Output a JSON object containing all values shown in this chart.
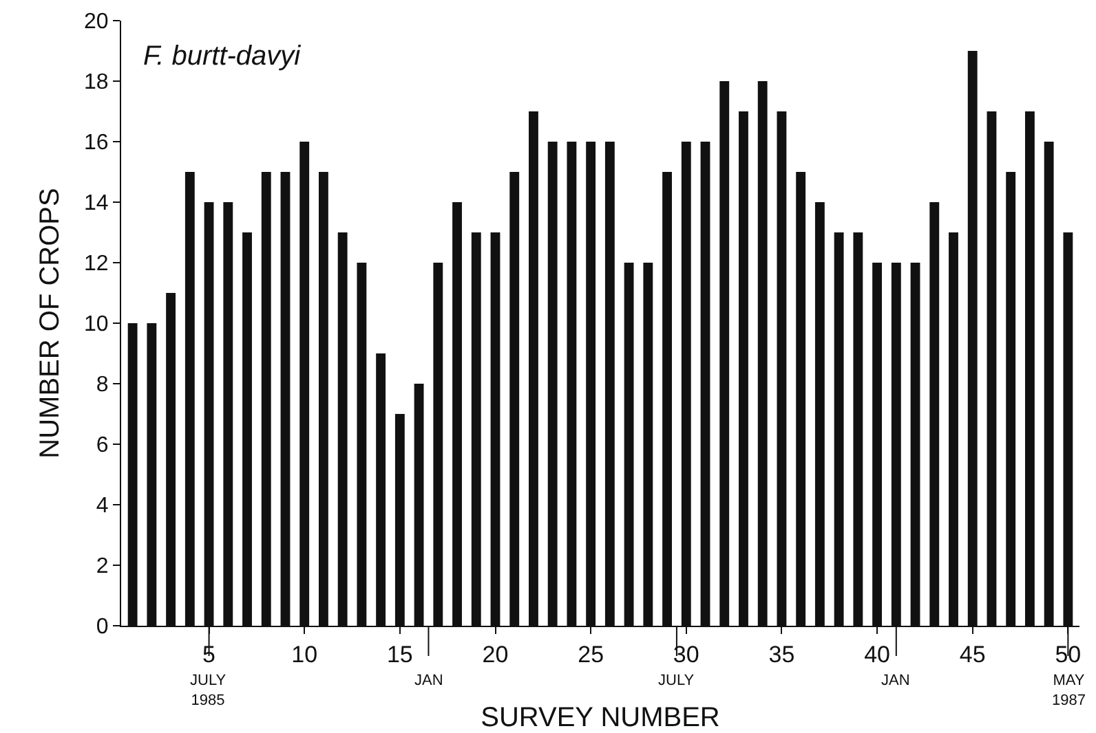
{
  "chart_data": {
    "type": "bar",
    "title": "F. burtt-davyi",
    "xlabel": "SURVEY NUMBER",
    "ylabel": "NUMBER OF CROPS",
    "x": [
      1,
      2,
      3,
      4,
      5,
      6,
      7,
      8,
      9,
      10,
      11,
      12,
      13,
      14,
      15,
      16,
      17,
      18,
      19,
      20,
      21,
      22,
      23,
      24,
      25,
      26,
      27,
      28,
      29,
      30,
      31,
      32,
      33,
      34,
      35,
      36,
      37,
      38,
      39,
      40,
      41,
      42,
      43,
      44,
      45,
      46,
      47,
      48,
      49,
      50
    ],
    "values": [
      10,
      10,
      11,
      15,
      14,
      14,
      13,
      15,
      15,
      16,
      15,
      13,
      12,
      9,
      7,
      8,
      12,
      14,
      13,
      13,
      15,
      17,
      16,
      16,
      16,
      16,
      12,
      12,
      15,
      16,
      16,
      18,
      17,
      18,
      17,
      15,
      14,
      13,
      13,
      12,
      12,
      12,
      14,
      13,
      19,
      17,
      15,
      17,
      16,
      13
    ],
    "color": "#111111",
    "xlim": [
      0.4,
      50.6
    ],
    "xticks": [
      5,
      10,
      15,
      20,
      25,
      30,
      35,
      40,
      45,
      50
    ],
    "ylim": [
      0,
      20
    ],
    "yticks": [
      0,
      2,
      4,
      6,
      8,
      10,
      12,
      14,
      16,
      18,
      20
    ],
    "grid": false,
    "legend": false,
    "ref_lines": [
      {
        "axis": "x",
        "value": 5,
        "label": "JULY\n1985"
      },
      {
        "axis": "x",
        "value": 16.5,
        "label": "JAN"
      },
      {
        "axis": "x",
        "value": 29.5,
        "label": "JULY"
      },
      {
        "axis": "x",
        "value": 41,
        "label": "JAN"
      },
      {
        "axis": "x",
        "value": 50,
        "label": "MAY\n1987"
      }
    ]
  }
}
